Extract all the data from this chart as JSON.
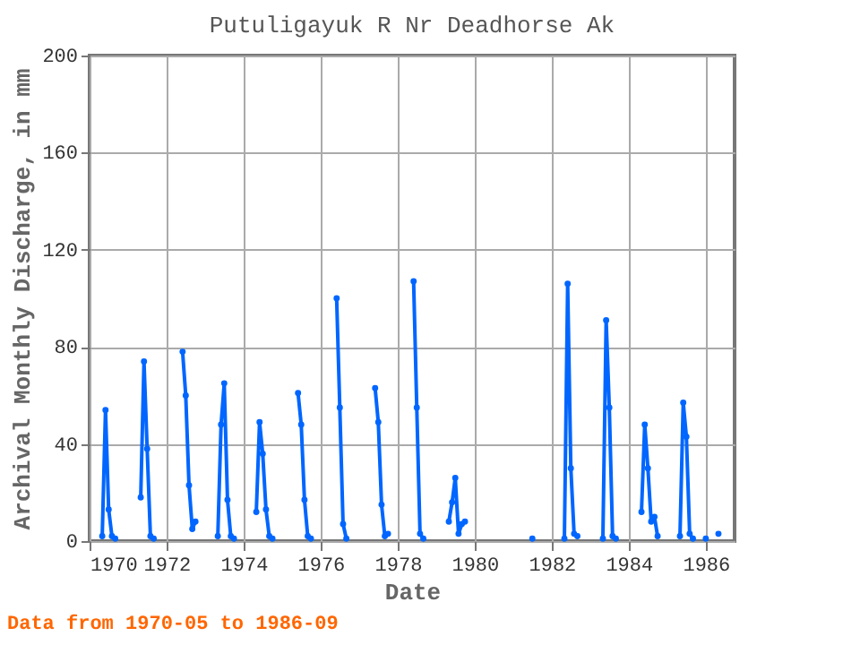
{
  "chart_data": {
    "type": "line",
    "title": "Putuligayuk R Nr Deadhorse Ak",
    "xlabel": "Date",
    "ylabel": "Archival Monthly Discharge, in mm",
    "annotations": [
      "Data from 1970-05 to 1986-09"
    ],
    "x": [
      "1970-05",
      "1970-06",
      "1970-07",
      "1970-08",
      "1970-09",
      "1970-10",
      "1971-05",
      "1971-06",
      "1971-07",
      "1971-08",
      "1971-09",
      "1971-10",
      "1972-06",
      "1972-07",
      "1972-08",
      "1972-09",
      "1972-10",
      "1972-11",
      "1973-05",
      "1973-06",
      "1973-07",
      "1973-08",
      "1973-09",
      "1973-10",
      "1973-11",
      "1974-05",
      "1974-06",
      "1974-07",
      "1974-08",
      "1974-09",
      "1974-10",
      "1974-11",
      "1975-06",
      "1975-07",
      "1975-08",
      "1975-09",
      "1975-10",
      "1975-11",
      "1976-06",
      "1976-07",
      "1976-08",
      "1976-09",
      "1976-10",
      "1977-06",
      "1977-07",
      "1977-08",
      "1977-09",
      "1977-10",
      "1977-11",
      "1978-06",
      "1978-07",
      "1978-08",
      "1978-09",
      "1978-10",
      "1979-05",
      "1979-06",
      "1979-07",
      "1979-08",
      "1979-09",
      "1979-10",
      "1979-11",
      "1981-07",
      "1981-08",
      "1982-05",
      "1982-06",
      "1982-07",
      "1982-08",
      "1982-09",
      "1982-10",
      "1983-05",
      "1983-06",
      "1983-07",
      "1983-08",
      "1983-09",
      "1983-10",
      "1984-05",
      "1984-06",
      "1984-07",
      "1984-08",
      "1984-09",
      "1984-10",
      "1984-11",
      "1985-05",
      "1985-06",
      "1985-07",
      "1985-08",
      "1985-09",
      "1985-10",
      "1986-01",
      "1986-02",
      "1986-05"
    ],
    "series": [
      {
        "color": "#0066ff",
        "values": [
          2,
          54,
          13,
          2,
          1,
          null,
          18,
          74,
          38,
          2,
          1,
          null,
          78,
          60,
          23,
          5,
          8,
          null,
          2,
          48,
          65,
          17,
          2,
          1,
          null,
          12,
          49,
          36,
          13,
          2,
          1,
          null,
          61,
          48,
          17,
          2,
          1,
          null,
          100,
          55,
          7,
          1,
          null,
          63,
          49,
          15,
          2,
          3,
          null,
          107,
          55,
          3,
          1,
          null,
          8,
          16,
          26,
          3,
          7,
          8,
          null,
          1,
          null,
          1,
          106,
          30,
          3,
          2,
          null,
          1,
          91,
          55,
          2,
          1,
          null,
          12,
          48,
          30,
          8,
          10,
          2,
          null,
          2,
          57,
          43,
          3,
          1,
          null,
          1,
          null,
          3
        ]
      }
    ],
    "xlim": [
      "1970-01",
      "1986-10"
    ],
    "xticks": [
      "1970",
      "1972",
      "1974",
      "1976",
      "1978",
      "1980",
      "1982",
      "1984",
      "1986"
    ],
    "ylim": [
      0,
      200
    ],
    "yticks": [
      0,
      40,
      80,
      120,
      160,
      200
    ],
    "grid": true,
    "marker": "circle",
    "line_style": "solid"
  }
}
